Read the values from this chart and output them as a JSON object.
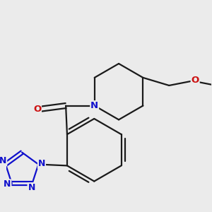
{
  "background_color": "#ebebeb",
  "bond_color": "#1a1a1a",
  "bond_width": 1.6,
  "atom_colors": {
    "N": "#1010cc",
    "O": "#cc1010",
    "C": "#1a1a1a"
  },
  "font_size": 9.5
}
